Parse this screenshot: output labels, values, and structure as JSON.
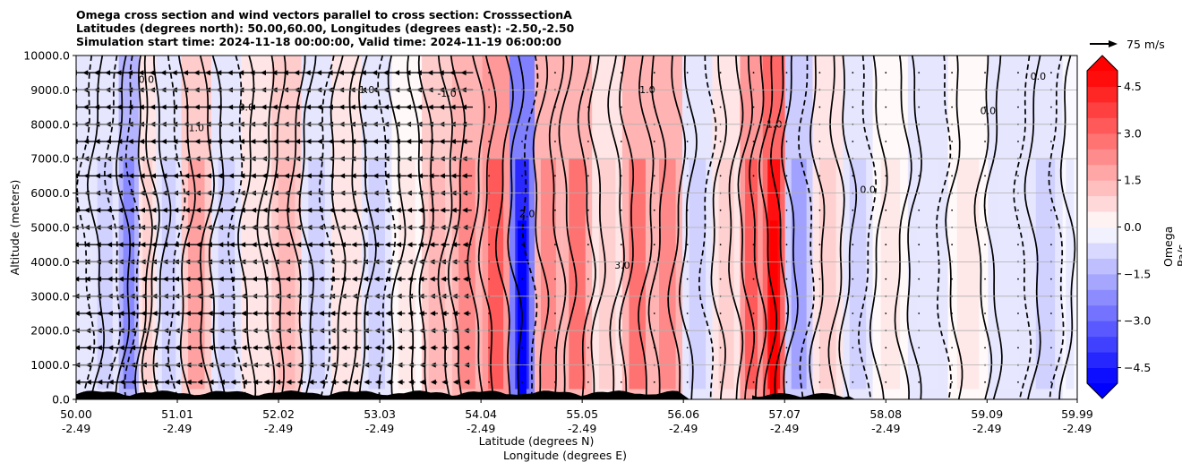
{
  "header": {
    "title_lines": [
      "Omega cross section and wind vectors parallel to cross section: CrosssectionA",
      "Latitudes (degrees north): 50.00,60.00, Longitudes (degrees east): -2.50,-2.50",
      "Simulation start time: 2024-11-18 00:00:00, Valid time: 2024-11-19 06:00:00"
    ]
  },
  "reference_vector": {
    "label": "75 m/s"
  },
  "colorbar": {
    "label": "Omega Pa/s",
    "ticks": [
      "4.5",
      "3.0",
      "1.5",
      "0.0",
      "−1.5",
      "−3.0",
      "−4.5"
    ],
    "tick_values": [
      4.5,
      3.0,
      1.5,
      0.0,
      -1.5,
      -3.0,
      -4.5
    ],
    "range": [
      -5.0,
      5.0
    ],
    "colormap": "bwr",
    "extend": "both"
  },
  "chart_data": {
    "type": "heatmap",
    "title": "Omega cross section and wind vectors parallel to cross section: CrosssectionA",
    "ylabel": "Altitude (meters)",
    "xlabel_lines": [
      "Latitude (degrees N)",
      "Longitude (degrees E)"
    ],
    "ylim": [
      0,
      10000
    ],
    "xlim": [
      50.0,
      59.99
    ],
    "y_ticks": [
      "0.0",
      "1000.0",
      "2000.0",
      "3000.0",
      "4000.0",
      "5000.0",
      "6000.0",
      "7000.0",
      "8000.0",
      "9000.0",
      "10000.0"
    ],
    "y_tick_values": [
      0,
      1000,
      2000,
      3000,
      4000,
      5000,
      6000,
      7000,
      8000,
      9000,
      10000
    ],
    "x_ticks_lat": [
      "50.00",
      "51.01",
      "52.02",
      "53.03",
      "54.04",
      "55.05",
      "56.06",
      "57.07",
      "58.08",
      "59.09",
      "59.99"
    ],
    "x_ticks_lon": [
      "-2.49",
      "-2.49",
      "-2.49",
      "-2.49",
      "-2.49",
      "-2.49",
      "-2.49",
      "-2.49",
      "-2.49",
      "-2.49",
      "-2.49"
    ],
    "x_tick_values": [
      50.0,
      51.01,
      52.02,
      53.03,
      54.04,
      55.05,
      56.06,
      57.07,
      58.08,
      59.09,
      59.99
    ],
    "grid": "horizontal",
    "omega_bands": [
      {
        "lat": 50.0,
        "omega": -0.5
      },
      {
        "lat": 50.3,
        "omega": -1.0
      },
      {
        "lat": 50.55,
        "omega": -2.5
      },
      {
        "lat": 50.7,
        "omega": 1.0
      },
      {
        "lat": 50.9,
        "omega": -1.0
      },
      {
        "lat": 51.2,
        "omega": 2.0
      },
      {
        "lat": 51.5,
        "omega": -1.0
      },
      {
        "lat": 51.8,
        "omega": 0.5
      },
      {
        "lat": 52.1,
        "omega": 1.5
      },
      {
        "lat": 52.4,
        "omega": -0.8
      },
      {
        "lat": 52.7,
        "omega": 0.6
      },
      {
        "lat": 53.0,
        "omega": -1.2
      },
      {
        "lat": 53.3,
        "omega": 0.4
      },
      {
        "lat": 53.6,
        "omega": 1.5
      },
      {
        "lat": 53.9,
        "omega": 2.5
      },
      {
        "lat": 54.2,
        "omega": 3.5
      },
      {
        "lat": 54.45,
        "omega": -4.5
      },
      {
        "lat": 54.7,
        "omega": 2.5
      },
      {
        "lat": 55.0,
        "omega": 3.0
      },
      {
        "lat": 55.3,
        "omega": 1.0
      },
      {
        "lat": 55.6,
        "omega": 3.0
      },
      {
        "lat": 55.9,
        "omega": 2.5
      },
      {
        "lat": 56.2,
        "omega": -0.8
      },
      {
        "lat": 56.5,
        "omega": 1.2
      },
      {
        "lat": 56.75,
        "omega": 3.5
      },
      {
        "lat": 56.95,
        "omega": 5.0
      },
      {
        "lat": 57.2,
        "omega": -2.0
      },
      {
        "lat": 57.5,
        "omega": 1.0
      },
      {
        "lat": 57.8,
        "omega": -0.8
      },
      {
        "lat": 58.1,
        "omega": 0.3
      },
      {
        "lat": 58.5,
        "omega": -0.6
      },
      {
        "lat": 58.9,
        "omega": 0.4
      },
      {
        "lat": 59.3,
        "omega": -0.5
      },
      {
        "lat": 59.7,
        "omega": -1.2
      },
      {
        "lat": 59.99,
        "omega": -0.4
      }
    ],
    "contour_labels": [
      {
        "lat": 50.7,
        "alt": 9200,
        "text": "0.0"
      },
      {
        "lat": 51.2,
        "alt": 7800,
        "text": "1.0"
      },
      {
        "lat": 51.7,
        "alt": 8400,
        "text": "0.0"
      },
      {
        "lat": 52.9,
        "alt": 8900,
        "text": "1.0"
      },
      {
        "lat": 53.7,
        "alt": 8800,
        "text": "-1.0"
      },
      {
        "lat": 54.5,
        "alt": 5300,
        "text": "2.0"
      },
      {
        "lat": 55.45,
        "alt": 3800,
        "text": "3.0"
      },
      {
        "lat": 55.7,
        "alt": 8900,
        "text": "1.0"
      },
      {
        "lat": 56.95,
        "alt": 7900,
        "text": "-1.0"
      },
      {
        "lat": 57.9,
        "alt": 6000,
        "text": "0.0"
      },
      {
        "lat": 59.1,
        "alt": 8300,
        "text": "0.0"
      },
      {
        "lat": 59.6,
        "alt": 9300,
        "text": "0.0"
      }
    ]
  }
}
